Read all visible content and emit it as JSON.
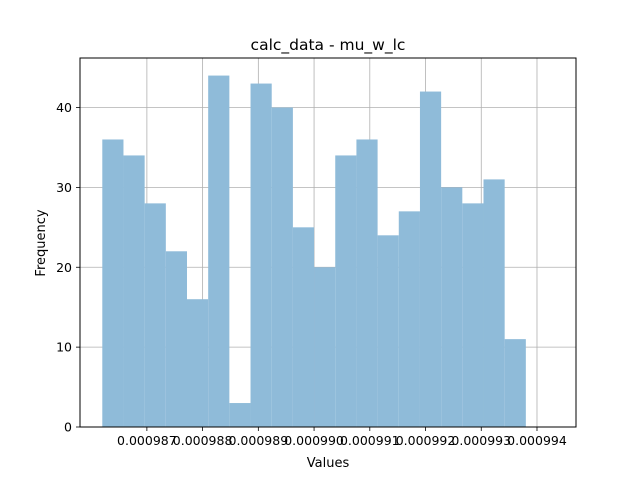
{
  "chart_data": {
    "type": "histogram",
    "title": "calc_data - mu_w_lc",
    "xlabel": "Values",
    "ylabel": "Frequency",
    "bar_color": "#8fbbd9",
    "grid": true,
    "xlim": [
      0.0009858,
      0.0009947
    ],
    "ylim": [
      0,
      46.2
    ],
    "x_ticks": [
      {
        "value": 0.000987,
        "label": "0.000987"
      },
      {
        "value": 0.000988,
        "label": "0.000988"
      },
      {
        "value": 0.000989,
        "label": "0.000989"
      },
      {
        "value": 0.00099,
        "label": "0.000990"
      },
      {
        "value": 0.000991,
        "label": "0.000991"
      },
      {
        "value": 0.000992,
        "label": "0.000992"
      },
      {
        "value": 0.000993,
        "label": "0.000993"
      },
      {
        "value": 0.000994,
        "label": "0.000994"
      }
    ],
    "y_ticks": [
      {
        "value": 0,
        "label": "0"
      },
      {
        "value": 10,
        "label": "10"
      },
      {
        "value": 20,
        "label": "20"
      },
      {
        "value": 30,
        "label": "30"
      },
      {
        "value": 40,
        "label": "40"
      }
    ],
    "bins": [
      {
        "start": 0.0009862,
        "end": 0.00098658,
        "count": 36
      },
      {
        "start": 0.00098658,
        "end": 0.00098696,
        "count": 34
      },
      {
        "start": 0.00098696,
        "end": 0.00098734,
        "count": 28
      },
      {
        "start": 0.00098734,
        "end": 0.00098772,
        "count": 22
      },
      {
        "start": 0.00098772,
        "end": 0.0009881,
        "count": 16
      },
      {
        "start": 0.0009881,
        "end": 0.00098848,
        "count": 44
      },
      {
        "start": 0.00098848,
        "end": 0.00098886,
        "count": 3
      },
      {
        "start": 0.00098886,
        "end": 0.00098924,
        "count": 43
      },
      {
        "start": 0.00098924,
        "end": 0.00098962,
        "count": 40
      },
      {
        "start": 0.00098962,
        "end": 0.00099,
        "count": 25
      },
      {
        "start": 0.00099,
        "end": 0.00099038,
        "count": 20
      },
      {
        "start": 0.00099038,
        "end": 0.00099076,
        "count": 34
      },
      {
        "start": 0.00099076,
        "end": 0.00099114,
        "count": 36
      },
      {
        "start": 0.00099114,
        "end": 0.00099152,
        "count": 24
      },
      {
        "start": 0.00099152,
        "end": 0.0009919,
        "count": 27
      },
      {
        "start": 0.0009919,
        "end": 0.00099228,
        "count": 42
      },
      {
        "start": 0.00099228,
        "end": 0.00099266,
        "count": 30
      },
      {
        "start": 0.00099266,
        "end": 0.00099304,
        "count": 28
      },
      {
        "start": 0.00099304,
        "end": 0.00099342,
        "count": 31
      },
      {
        "start": 0.00099342,
        "end": 0.0009938,
        "count": 11
      }
    ]
  }
}
